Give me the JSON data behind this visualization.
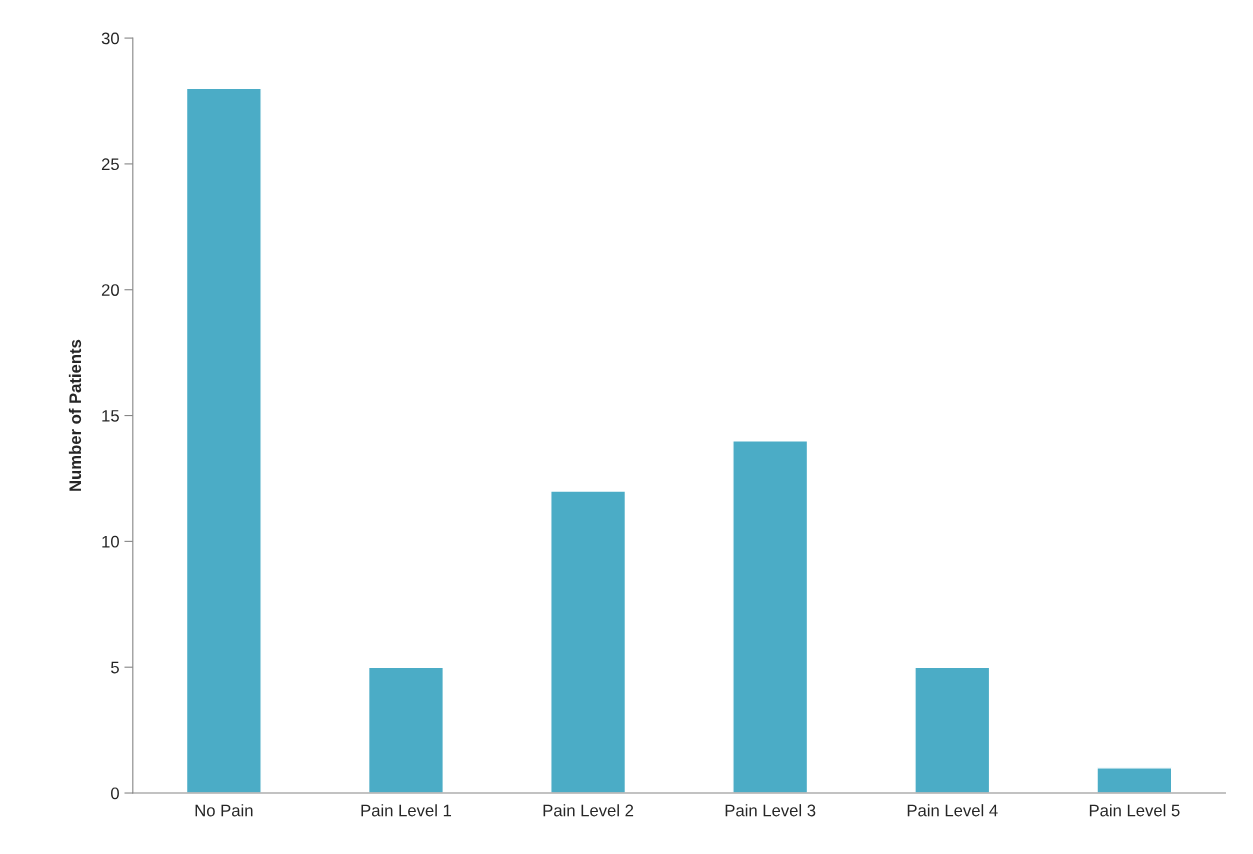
{
  "chart_data": {
    "type": "bar",
    "ylabel": "Number of Patients",
    "categories": [
      "No Pain",
      "Pain Level 1",
      "Pain Level 2",
      "Pain Level 3",
      "Pain Level 4",
      "Pain Level 5"
    ],
    "values": [
      28,
      5,
      12,
      14,
      5,
      1
    ],
    "color": "#4bacc6",
    "ylim": [
      0,
      30
    ],
    "yticks": [
      0,
      5,
      10,
      15,
      20,
      25,
      30
    ],
    "grid": false,
    "legend": false
  }
}
